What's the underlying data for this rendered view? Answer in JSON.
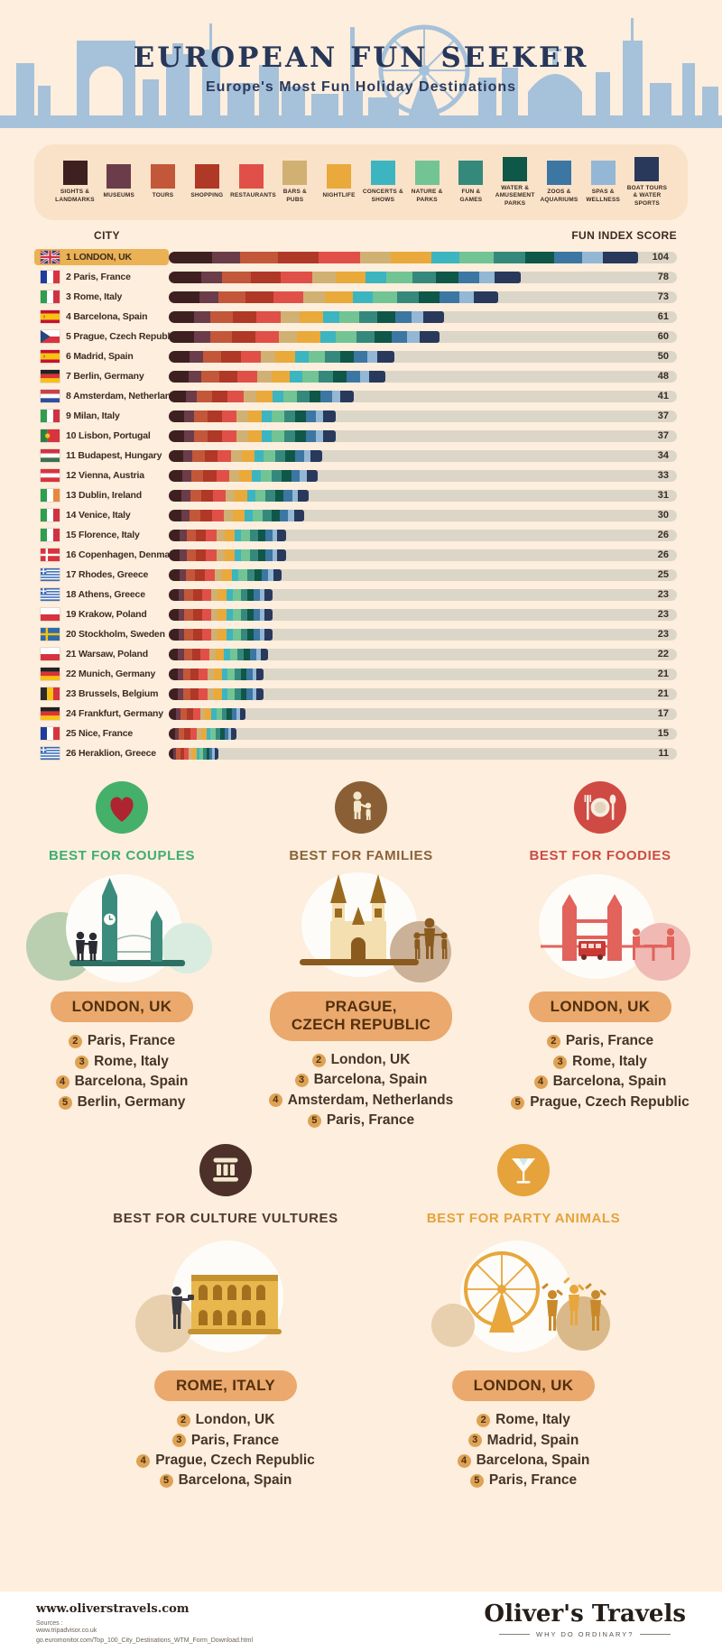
{
  "header": {
    "title": "EUROPEAN FUN SEEKER",
    "subtitle": "Europe's Most Fun Holiday Destinations"
  },
  "chart_data": {
    "type": "bar",
    "subtype": "horizontal-stacked",
    "title": "Fun Index Score by European City",
    "column_headers": {
      "city": "CITY",
      "score": "FUN INDEX SCORE"
    },
    "xlim": [
      0,
      104
    ],
    "grid": false,
    "highlight_rank": 1,
    "categories": [
      {
        "label": "SIGHTS & LANDMARKS",
        "color": "#3f2021"
      },
      {
        "label": "MUSEUMS",
        "color": "#6b3c49"
      },
      {
        "label": "TOURS",
        "color": "#c3573a"
      },
      {
        "label": "SHOPPING",
        "color": "#b03826"
      },
      {
        "label": "RESTAURANTS",
        "color": "#e05048"
      },
      {
        "label": "BARS & PUBS",
        "color": "#d0b173"
      },
      {
        "label": "NIGHTLIFE",
        "color": "#e9a93b"
      },
      {
        "label": "CONCERTS & SHOWS",
        "color": "#3cb5c0"
      },
      {
        "label": "NATURE & PARKS",
        "color": "#72c494"
      },
      {
        "label": "FUN & GAMES",
        "color": "#35897c"
      },
      {
        "label": "WATER & AMUSEMENT PARKS",
        "color": "#0f5748"
      },
      {
        "label": "ZOOS & AQUARIUMS",
        "color": "#3c76a2"
      },
      {
        "label": "SPAS & WELLNESS",
        "color": "#93b7d4"
      },
      {
        "label": "BOAT TOURS & WATER SPORTS",
        "color": "#28395c"
      }
    ],
    "segment_weights": [
      1.25,
      0.8,
      1.1,
      1.15,
      1.2,
      0.9,
      1.15,
      0.8,
      1.0,
      0.9,
      0.85,
      0.8,
      0.6,
      1.0
    ],
    "cities": [
      {
        "rank": 1,
        "name": "LONDON, UK",
        "flag": "gb",
        "score": 104
      },
      {
        "rank": 2,
        "name": "Paris, France",
        "flag": "fr",
        "score": 78
      },
      {
        "rank": 3,
        "name": "Rome, Italy",
        "flag": "it",
        "score": 73
      },
      {
        "rank": 4,
        "name": "Barcelona, Spain",
        "flag": "es",
        "score": 61
      },
      {
        "rank": 5,
        "name": "Prague, Czech Republic",
        "flag": "cz",
        "score": 60
      },
      {
        "rank": 6,
        "name": "Madrid, Spain",
        "flag": "es",
        "score": 50
      },
      {
        "rank": 7,
        "name": "Berlin, Germany",
        "flag": "de",
        "score": 48
      },
      {
        "rank": 8,
        "name": "Amsterdam, Netherlands",
        "flag": "nl",
        "score": 41
      },
      {
        "rank": 9,
        "name": "Milan, Italy",
        "flag": "it",
        "score": 37
      },
      {
        "rank": 10,
        "name": "Lisbon, Portugal",
        "flag": "pt",
        "score": 37
      },
      {
        "rank": 11,
        "name": "Budapest, Hungary",
        "flag": "hu",
        "score": 34
      },
      {
        "rank": 12,
        "name": "Vienna, Austria",
        "flag": "at",
        "score": 33
      },
      {
        "rank": 13,
        "name": "Dublin, Ireland",
        "flag": "ie",
        "score": 31
      },
      {
        "rank": 14,
        "name": "Venice, Italy",
        "flag": "it",
        "score": 30
      },
      {
        "rank": 15,
        "name": "Florence, Italy",
        "flag": "it",
        "score": 26
      },
      {
        "rank": 16,
        "name": "Copenhagen, Denmark",
        "flag": "dk",
        "score": 26
      },
      {
        "rank": 17,
        "name": "Rhodes, Greece",
        "flag": "gr",
        "score": 25
      },
      {
        "rank": 18,
        "name": "Athens, Greece",
        "flag": "gr",
        "score": 23
      },
      {
        "rank": 19,
        "name": "Krakow, Poland",
        "flag": "pl",
        "score": 23
      },
      {
        "rank": 20,
        "name": "Stockholm, Sweden",
        "flag": "se",
        "score": 23
      },
      {
        "rank": 21,
        "name": "Warsaw, Poland",
        "flag": "pl",
        "score": 22
      },
      {
        "rank": 22,
        "name": "Munich, Germany",
        "flag": "de",
        "score": 21
      },
      {
        "rank": 23,
        "name": "Brussels, Belgium",
        "flag": "be",
        "score": 21
      },
      {
        "rank": 24,
        "name": "Frankfurt, Germany",
        "flag": "de",
        "score": 17
      },
      {
        "rank": 25,
        "name": "Nice, France",
        "flag": "fr",
        "score": 15
      },
      {
        "rank": 26,
        "name": "Heraklion, Greece",
        "flag": "gr",
        "score": 11
      }
    ]
  },
  "best_for": [
    {
      "id": "couples",
      "title": "BEST FOR COUPLES",
      "color": "#3fae6e",
      "icon_bg": "#45b06a",
      "winner_lines": [
        "LONDON, UK"
      ],
      "runners": [
        {
          "rank": 2,
          "name": "Paris, France"
        },
        {
          "rank": 3,
          "name": "Rome, Italy"
        },
        {
          "rank": 4,
          "name": "Barcelona, Spain"
        },
        {
          "rank": 5,
          "name": "Berlin, Germany"
        }
      ]
    },
    {
      "id": "families",
      "title": "BEST FOR FAMILIES",
      "color": "#8a6239",
      "icon_bg": "#8a5f35",
      "winner_lines": [
        "PRAGUE,",
        "CZECH REPUBLIC"
      ],
      "runners": [
        {
          "rank": 2,
          "name": "London, UK"
        },
        {
          "rank": 3,
          "name": "Barcelona, Spain"
        },
        {
          "rank": 4,
          "name": "Amsterdam, Netherlands"
        },
        {
          "rank": 5,
          "name": "Paris, France"
        }
      ]
    },
    {
      "id": "foodies",
      "title": "BEST FOR FOODIES",
      "color": "#cc4b44",
      "icon_bg": "#cf4a43",
      "winner_lines": [
        "LONDON, UK"
      ],
      "runners": [
        {
          "rank": 2,
          "name": "Paris, France"
        },
        {
          "rank": 3,
          "name": "Rome, Italy"
        },
        {
          "rank": 4,
          "name": "Barcelona, Spain"
        },
        {
          "rank": 5,
          "name": "Prague, Czech Republic"
        }
      ]
    },
    {
      "id": "culture",
      "title": "BEST FOR CULTURE VULTURES",
      "color": "#53392f",
      "icon_bg": "#4c3029",
      "winner_lines": [
        "ROME, ITALY"
      ],
      "runners": [
        {
          "rank": 2,
          "name": "London, UK"
        },
        {
          "rank": 3,
          "name": "Paris, France"
        },
        {
          "rank": 4,
          "name": "Prague, Czech Republic"
        },
        {
          "rank": 5,
          "name": "Barcelona, Spain"
        }
      ]
    },
    {
      "id": "party",
      "title": "BEST FOR PARTY ANIMALS",
      "color": "#e4a33b",
      "icon_bg": "#e6a33c",
      "winner_lines": [
        "LONDON, UK"
      ],
      "runners": [
        {
          "rank": 2,
          "name": "Rome, Italy"
        },
        {
          "rank": 3,
          "name": "Madrid, Spain"
        },
        {
          "rank": 4,
          "name": "Barcelona, Spain"
        },
        {
          "rank": 5,
          "name": "Paris, France"
        }
      ]
    }
  ],
  "footer": {
    "website": "www.oliverstravels.com",
    "sources_label": "Sources :",
    "sources": [
      "www.tripadvisor.co.uk",
      "go.euromonitor.com/Top_100_City_Destinations_WTM_Form_Download.html"
    ],
    "logo": "Oliver's Travels",
    "tagline": "WHY DO ORDINARY?"
  }
}
